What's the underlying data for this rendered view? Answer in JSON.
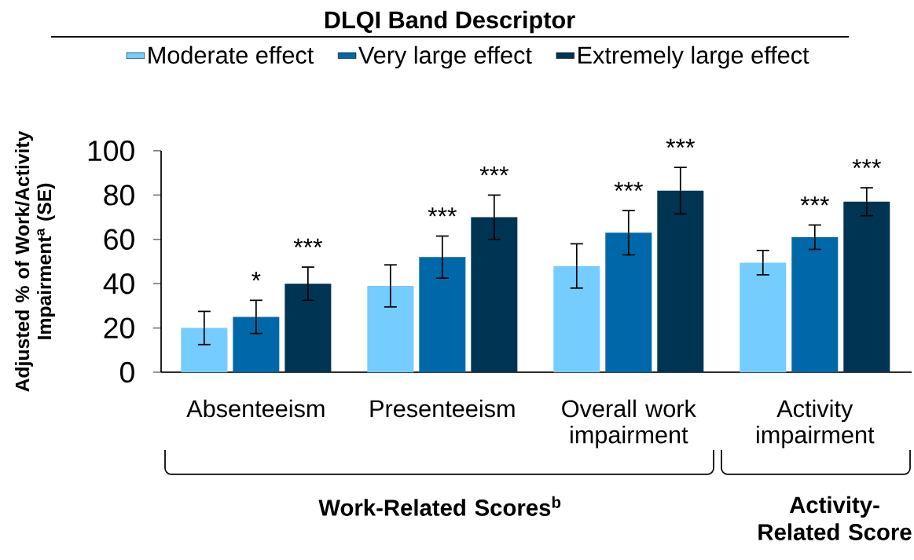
{
  "chart_data": {
    "type": "bar",
    "legend_title": "DLQI Band Descriptor",
    "ylabel": "Adjusted % of Work/Activity Impairment$^{a}$ (SE)",
    "categories": [
      "Absenteeism",
      "Presenteeism",
      "Overall work impairment",
      "Activity impairment"
    ],
    "series": [
      {
        "name": "Moderate effect",
        "color": "#75ccff",
        "values": [
          20,
          39,
          48,
          49.5
        ],
        "errors": [
          7.5,
          9.5,
          10,
          5.5
        ]
      },
      {
        "name": "Very large effect",
        "color": "#0068a8",
        "values": [
          25,
          52,
          63,
          61
        ],
        "errors": [
          7.5,
          9.5,
          10,
          5.5
        ],
        "value_labels": [
          "*",
          "***",
          "***",
          "***"
        ]
      },
      {
        "name": "Extremely large effect",
        "color": "#003453",
        "values": [
          40,
          70,
          82,
          77
        ],
        "errors": [
          7.5,
          10,
          10.5,
          6.3
        ],
        "value_labels": [
          "***",
          "***",
          "***",
          "***"
        ]
      }
    ],
    "ylim": [
      0,
      100
    ],
    "yticks": [
      0,
      20,
      40,
      60,
      80,
      100
    ],
    "grid": false,
    "legend": "top",
    "annotations": [
      "Work-Related Scores$^{b}$",
      "Activity-Related Score"
    ]
  }
}
